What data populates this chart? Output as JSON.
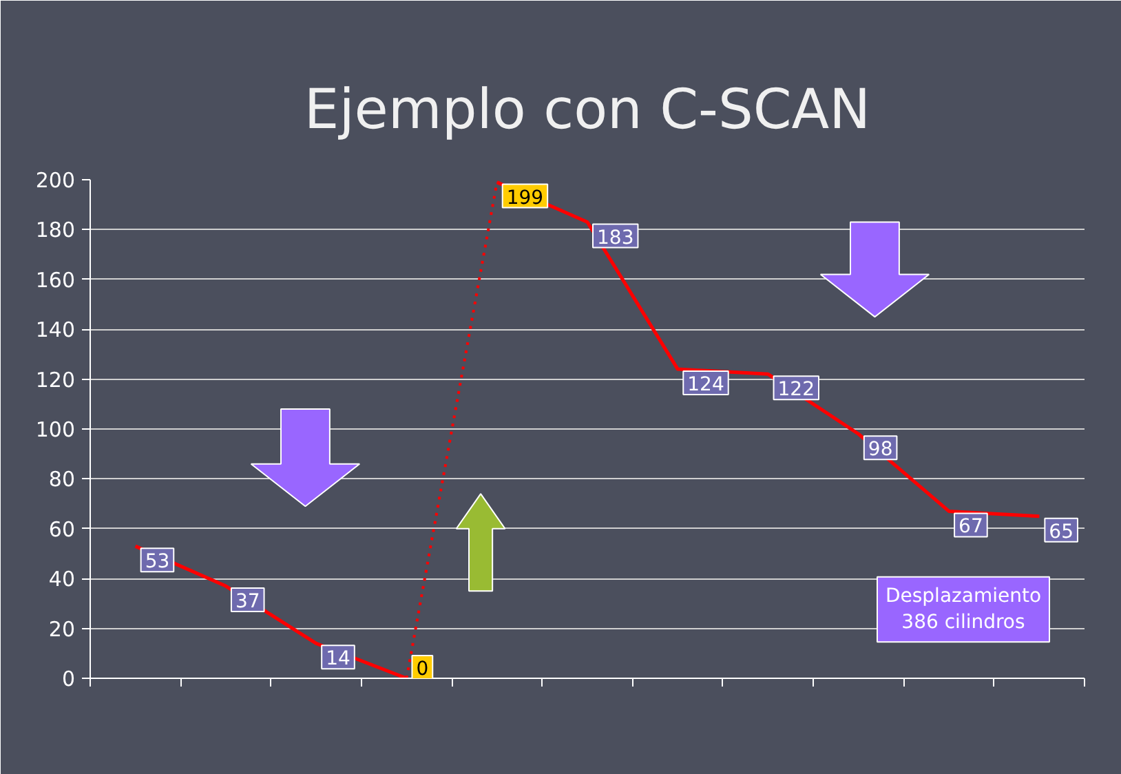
{
  "chart_data": {
    "type": "line",
    "title": "Ejemplo con C-SCAN",
    "categories": [
      null,
      null,
      null,
      null,
      null,
      null,
      null,
      null,
      null,
      null,
      null
    ],
    "series": [
      {
        "color": "#ff0000",
        "line_style": "solid",
        "values": [
          53,
          37,
          14,
          0,
          null,
          null,
          null,
          null,
          null,
          null,
          null
        ],
        "value_labels": [
          "53",
          "37",
          "14",
          null,
          null,
          null,
          null,
          null,
          null,
          null,
          null
        ]
      },
      {
        "color": "#ff0000",
        "line_style": "dotted",
        "values": [
          null,
          null,
          null,
          0,
          199,
          null,
          null,
          null,
          null,
          null,
          null
        ],
        "value_labels": [
          null,
          null,
          null,
          "0",
          "199",
          null,
          null,
          null,
          null,
          null,
          null
        ]
      },
      {
        "color": "#ff0000",
        "line_style": "solid",
        "values": [
          null,
          null,
          null,
          null,
          199,
          183,
          124,
          122,
          98,
          67,
          65
        ],
        "value_labels": [
          null,
          null,
          null,
          null,
          null,
          "183",
          "124",
          "122",
          "98",
          "67",
          "65"
        ]
      }
    ],
    "ylim": [
      0,
      200
    ],
    "yticks": [
      0,
      20,
      40,
      60,
      80,
      100,
      120,
      140,
      160,
      180,
      200
    ],
    "grid": "y",
    "marker": "none",
    "annotations": [
      "Desplazamiento\n386 cilindros"
    ]
  }
}
